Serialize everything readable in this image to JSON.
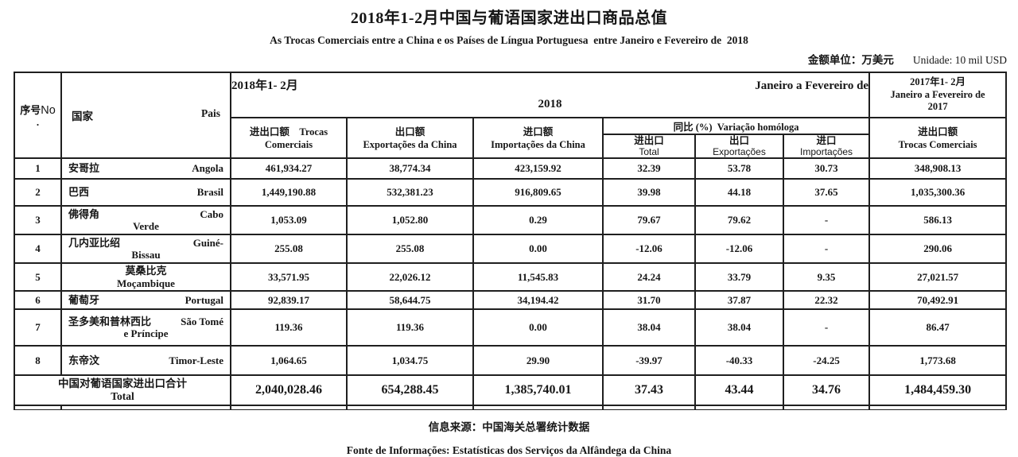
{
  "page": {
    "title": "2018年1-2月中国与葡语国家进出口商品总值",
    "subtitle": "As Trocas Comerciais entre a China e os Países de Língua Portuguesa  entre Janeiro e Fevereiro de  2018",
    "unit_cn": "金额单位：万美元",
    "unit_pt": "Unidade: 10 mil USD",
    "source_cn": "信息来源：中国海关总署统计数据",
    "source_pt": "Fonte de Informações: Estatísticas dos Serviços da Alfândega da China",
    "text_color": "#161616",
    "border_color": "#1f1f1f",
    "background_color": "#ffffff"
  },
  "table": {
    "head": {
      "no_cn": "序号",
      "no_latin": "No",
      "no_dot": ".",
      "country_cn": "国家",
      "country_pt": "Pais",
      "p2018_cn": "2018年1- 2月",
      "p2018_pt": "Janeiro a Fevereiro de",
      "p2018_year": "2018",
      "c_trocas_l1": "进出口额    Trocas",
      "c_trocas_l2": "Comerciais",
      "c_exp_l1": "出口额",
      "c_exp_l2": "Exportações da China",
      "c_imp_l1": "进口额",
      "c_imp_l2": "Importações da China",
      "yoy_group": "同比 (%)  Variação homóloga",
      "yoy1_cn": "进出口",
      "yoy1_pt": "Total",
      "yoy2_cn": "出口",
      "yoy2_pt": "Exportações",
      "yoy3_cn": "进口",
      "yoy3_pt": "Importações",
      "p2017_l1": "2017年1- 2月",
      "p2017_l2": "Janeiro a Fevereiro de",
      "p2017_l3": "2017",
      "c2017_l1": "进出口额",
      "c2017_l2": "Trocas Comerciais"
    },
    "rows": [
      {
        "no": "1",
        "cn": "安哥拉",
        "pt1": "Angola",
        "pt2": "",
        "center": false,
        "vals": [
          "461,934.27",
          "38,774.34",
          "423,159.92",
          "32.39",
          "53.78",
          "30.73",
          "348,908.13"
        ]
      },
      {
        "no": "2",
        "cn": "巴西",
        "pt1": "Brasil",
        "pt2": "",
        "center": false,
        "vals": [
          "1,449,190.88",
          "532,381.23",
          "916,809.65",
          "39.98",
          "44.18",
          "37.65",
          "1,035,300.36"
        ]
      },
      {
        "no": "3",
        "cn": "佛得角",
        "pt1": "Cabo",
        "pt2": "Verde",
        "center": false,
        "vals": [
          "1,053.09",
          "1,052.80",
          "0.29",
          "79.67",
          "79.62",
          "-",
          "586.13"
        ]
      },
      {
        "no": "4",
        "cn": "几内亚比绍",
        "pt1": "Guiné-",
        "pt2": "Bissau",
        "center": false,
        "vals": [
          "255.08",
          "255.08",
          "0.00",
          "-12.06",
          "-12.06",
          "-",
          "290.06"
        ]
      },
      {
        "no": "5",
        "cn": "莫桑比克",
        "pt1": "",
        "pt2": "Moçambique",
        "center": true,
        "vals": [
          "33,571.95",
          "22,026.12",
          "11,545.83",
          "24.24",
          "33.79",
          "9.35",
          "27,021.57"
        ]
      },
      {
        "no": "6",
        "cn": "葡萄牙",
        "pt1": "Portugal",
        "pt2": "",
        "center": false,
        "vals": [
          "92,839.17",
          "58,644.75",
          "34,194.42",
          "31.70",
          "37.87",
          "22.32",
          "70,492.91"
        ]
      },
      {
        "no": "7",
        "cn": "圣多美和普林西比",
        "pt1": "São Tomé",
        "pt2": "e Príncipe",
        "center": false,
        "vals": [
          "119.36",
          "119.36",
          "0.00",
          "38.04",
          "38.04",
          "-",
          "86.47"
        ]
      },
      {
        "no": "8",
        "cn": "东帝汶",
        "pt1": "Timor-Leste",
        "pt2": "",
        "center": false,
        "vals": [
          "1,064.65",
          "1,034.75",
          "29.90",
          "-39.97",
          "-40.33",
          "-24.25",
          "1,773.68"
        ]
      }
    ],
    "total": {
      "label_cn": "中国对葡语国家进出口合计",
      "label_pt": "Total",
      "vals": [
        "2,040,028.46",
        "654,288.45",
        "1,385,740.01",
        "37.43",
        "43.44",
        "34.76",
        "1,484,459.30"
      ]
    }
  }
}
